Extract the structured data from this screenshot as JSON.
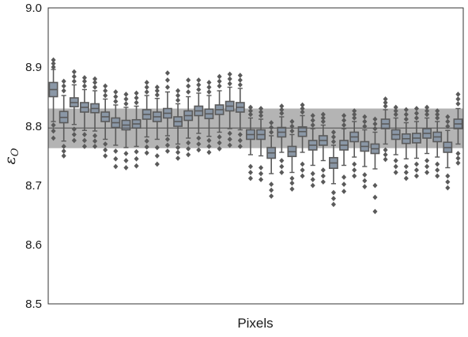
{
  "chart_data": {
    "type": "boxplot",
    "xlabel": "Pixels",
    "ylabel": "ε",
    "ylabel_subscript": "O",
    "ylim": [
      8.5,
      9.0
    ],
    "yticks": [
      "8.5",
      "8.6",
      "8.7",
      "8.8",
      "8.9",
      "9.0"
    ],
    "ytick_values": [
      8.5,
      8.6,
      8.7,
      8.8,
      8.9,
      9.0
    ],
    "grid": false,
    "band": {
      "center": 8.797,
      "low": 8.763,
      "high": 8.83
    },
    "colors": {
      "box_fill": "#8a97a6",
      "box_edge": "#5a5a5a",
      "band": "#b0b0b0",
      "line": "#5a5a5a"
    },
    "boxes": [
      {
        "q1": 8.85,
        "median": 8.862,
        "q3": 8.874,
        "whislo": 8.808,
        "whishi": 8.896,
        "fliers_low": [
          8.78,
          8.792,
          8.802
        ],
        "fliers_high": [
          8.9,
          8.906,
          8.912
        ]
      },
      {
        "q1": 8.806,
        "median": 8.815,
        "q3": 8.825,
        "whislo": 8.775,
        "whishi": 8.852,
        "fliers_low": [
          8.75,
          8.758,
          8.766
        ],
        "fliers_high": [
          8.86,
          8.868,
          8.876
        ]
      },
      {
        "q1": 8.833,
        "median": 8.84,
        "q3": 8.848,
        "whislo": 8.803,
        "whishi": 8.87,
        "fliers_low": [
          8.776,
          8.786,
          8.795
        ],
        "fliers_high": [
          8.876,
          8.884,
          8.892
        ]
      },
      {
        "q1": 8.824,
        "median": 8.832,
        "q3": 8.84,
        "whislo": 8.793,
        "whishi": 8.862,
        "fliers_low": [
          8.766,
          8.776,
          8.786
        ],
        "fliers_high": [
          8.868,
          8.876,
          8.882
        ]
      },
      {
        "q1": 8.823,
        "median": 8.83,
        "q3": 8.838,
        "whislo": 8.792,
        "whishi": 8.86,
        "fliers_low": [
          8.766,
          8.775,
          8.784
        ],
        "fliers_high": [
          8.866,
          8.874,
          8.88
        ]
      },
      {
        "q1": 8.808,
        "median": 8.816,
        "q3": 8.824,
        "whislo": 8.778,
        "whishi": 8.846,
        "fliers_low": [
          8.75,
          8.76,
          8.77
        ],
        "fliers_high": [
          8.852,
          8.86,
          8.868
        ]
      },
      {
        "q1": 8.798,
        "median": 8.806,
        "q3": 8.814,
        "whislo": 8.768,
        "whishi": 8.836,
        "fliers_low": [
          8.732,
          8.745,
          8.758
        ],
        "fliers_high": [
          8.842,
          8.85,
          8.858
        ]
      },
      {
        "q1": 8.794,
        "median": 8.802,
        "q3": 8.81,
        "whislo": 8.764,
        "whishi": 8.832,
        "fliers_low": [
          8.73,
          8.742,
          8.754
        ],
        "fliers_high": [
          8.838,
          8.846,
          8.854
        ]
      },
      {
        "q1": 8.797,
        "median": 8.804,
        "q3": 8.811,
        "whislo": 8.766,
        "whishi": 8.834,
        "fliers_low": [
          8.733,
          8.745,
          8.757
        ],
        "fliers_high": [
          8.84,
          8.848,
          8.856
        ]
      },
      {
        "q1": 8.812,
        "median": 8.82,
        "q3": 8.828,
        "whislo": 8.782,
        "whishi": 8.852,
        "fliers_low": [
          8.755,
          8.765,
          8.775
        ],
        "fliers_high": [
          8.858,
          8.866,
          8.874
        ]
      },
      {
        "q1": 8.808,
        "median": 8.816,
        "q3": 8.824,
        "whislo": 8.778,
        "whishi": 8.847,
        "fliers_low": [
          8.736,
          8.75,
          8.764
        ],
        "fliers_high": [
          8.853,
          8.86,
          8.866
        ]
      },
      {
        "q1": 8.814,
        "median": 8.822,
        "q3": 8.83,
        "whislo": 8.784,
        "whishi": 8.858,
        "fliers_low": [
          8.758,
          8.768,
          8.778
        ],
        "fliers_high": [
          8.866,
          8.878,
          8.89
        ]
      },
      {
        "q1": 8.8,
        "median": 8.808,
        "q3": 8.816,
        "whislo": 8.77,
        "whishi": 8.838,
        "fliers_low": [
          8.746,
          8.756,
          8.764
        ],
        "fliers_high": [
          8.844,
          8.852,
          8.86
        ]
      },
      {
        "q1": 8.81,
        "median": 8.818,
        "q3": 8.826,
        "whislo": 8.78,
        "whishi": 8.85,
        "fliers_low": [
          8.752,
          8.762,
          8.772
        ],
        "fliers_high": [
          8.858,
          8.868,
          8.878
        ]
      },
      {
        "q1": 8.818,
        "median": 8.826,
        "q3": 8.834,
        "whislo": 8.788,
        "whishi": 8.856,
        "fliers_low": [
          8.76,
          8.77,
          8.78
        ],
        "fliers_high": [
          8.862,
          8.87,
          8.878
        ]
      },
      {
        "q1": 8.813,
        "median": 8.821,
        "q3": 8.829,
        "whislo": 8.783,
        "whishi": 8.852,
        "fliers_low": [
          8.756,
          8.766,
          8.776
        ],
        "fliers_high": [
          8.858,
          8.866,
          8.874
        ]
      },
      {
        "q1": 8.82,
        "median": 8.828,
        "q3": 8.836,
        "whislo": 8.79,
        "whishi": 8.86,
        "fliers_low": [
          8.762,
          8.772,
          8.782
        ],
        "fliers_high": [
          8.868,
          8.876,
          8.884
        ]
      },
      {
        "q1": 8.826,
        "median": 8.834,
        "q3": 8.842,
        "whislo": 8.796,
        "whishi": 8.866,
        "fliers_low": [
          8.768,
          8.778,
          8.788
        ],
        "fliers_high": [
          8.872,
          8.88,
          8.888
        ]
      },
      {
        "q1": 8.824,
        "median": 8.832,
        "q3": 8.84,
        "whislo": 8.794,
        "whishi": 8.864,
        "fliers_low": [
          8.766,
          8.776,
          8.786
        ],
        "fliers_high": [
          8.87,
          8.878,
          8.886
        ]
      },
      {
        "q1": 8.778,
        "median": 8.786,
        "q3": 8.794,
        "whislo": 8.752,
        "whishi": 8.814,
        "fliers_low": [
          8.712,
          8.722,
          8.732
        ],
        "fliers_high": [
          8.82,
          8.826,
          8.832
        ]
      },
      {
        "q1": 8.778,
        "median": 8.786,
        "q3": 8.794,
        "whislo": 8.75,
        "whishi": 8.812,
        "fliers_low": [
          8.71,
          8.72,
          8.73
        ],
        "fliers_high": [
          8.818,
          8.824,
          8.83
        ]
      },
      {
        "q1": 8.746,
        "median": 8.755,
        "q3": 8.764,
        "whislo": 8.72,
        "whishi": 8.784,
        "fliers_low": [
          8.682,
          8.692,
          8.702
        ],
        "fliers_high": [
          8.79,
          8.798,
          8.806
        ]
      },
      {
        "q1": 8.782,
        "median": 8.79,
        "q3": 8.798,
        "whislo": 8.756,
        "whishi": 8.816,
        "fliers_low": [
          8.722,
          8.732,
          8.742
        ],
        "fliers_high": [
          8.822,
          8.828,
          8.834
        ]
      },
      {
        "q1": 8.749,
        "median": 8.757,
        "q3": 8.766,
        "whislo": 8.722,
        "whishi": 8.786,
        "fliers_low": [
          8.694,
          8.704,
          8.712
        ],
        "fliers_high": [
          8.792,
          8.8,
          8.808
        ]
      },
      {
        "q1": 8.783,
        "median": 8.791,
        "q3": 8.799,
        "whislo": 8.756,
        "whishi": 8.818,
        "fliers_low": [
          8.716,
          8.726,
          8.736
        ],
        "fliers_high": [
          8.824,
          8.83,
          8.836
        ]
      },
      {
        "q1": 8.76,
        "median": 8.768,
        "q3": 8.776,
        "whislo": 8.734,
        "whishi": 8.796,
        "fliers_low": [
          8.7,
          8.71,
          8.72
        ],
        "fliers_high": [
          8.802,
          8.81,
          8.818
        ]
      },
      {
        "q1": 8.768,
        "median": 8.776,
        "q3": 8.784,
        "whislo": 8.742,
        "whishi": 8.802,
        "fliers_low": [
          8.706,
          8.716,
          8.726
        ],
        "fliers_high": [
          8.808,
          8.814,
          8.82
        ]
      },
      {
        "q1": 8.729,
        "median": 8.738,
        "q3": 8.747,
        "whislo": 8.703,
        "whishi": 8.768,
        "fliers_low": [
          8.668,
          8.678,
          8.688
        ],
        "fliers_high": [
          8.774,
          8.782,
          8.79
        ]
      },
      {
        "q1": 8.76,
        "median": 8.768,
        "q3": 8.776,
        "whislo": 8.734,
        "whishi": 8.796,
        "fliers_low": [
          8.69,
          8.702,
          8.714
        ],
        "fliers_high": [
          8.802,
          8.81,
          8.818
        ]
      },
      {
        "q1": 8.774,
        "median": 8.782,
        "q3": 8.79,
        "whislo": 8.748,
        "whishi": 8.808,
        "fliers_low": [
          8.716,
          8.726,
          8.736
        ],
        "fliers_high": [
          8.814,
          8.82,
          8.826
        ]
      },
      {
        "q1": 8.758,
        "median": 8.766,
        "q3": 8.774,
        "whislo": 8.732,
        "whishi": 8.794,
        "fliers_low": [
          8.698,
          8.708,
          8.718
        ],
        "fliers_high": [
          8.8,
          8.808,
          8.816
        ]
      },
      {
        "q1": 8.754,
        "median": 8.762,
        "q3": 8.77,
        "whislo": 8.728,
        "whishi": 8.79,
        "fliers_low": [
          8.656,
          8.68,
          8.7
        ],
        "fliers_high": [
          8.796,
          8.804,
          8.812
        ]
      },
      {
        "q1": 8.796,
        "median": 8.804,
        "q3": 8.812,
        "whislo": 8.77,
        "whishi": 8.828,
        "fliers_low": [
          8.744,
          8.752,
          8.76
        ],
        "fliers_high": [
          8.834,
          8.84,
          8.846
        ]
      },
      {
        "q1": 8.778,
        "median": 8.786,
        "q3": 8.794,
        "whislo": 8.752,
        "whishi": 8.814,
        "fliers_low": [
          8.722,
          8.732,
          8.742
        ],
        "fliers_high": [
          8.82,
          8.826,
          8.832
        ]
      },
      {
        "q1": 8.771,
        "median": 8.779,
        "q3": 8.787,
        "whislo": 8.745,
        "whishi": 8.806,
        "fliers_low": [
          8.712,
          8.722,
          8.732
        ],
        "fliers_high": [
          8.812,
          8.82,
          8.828
        ]
      },
      {
        "q1": 8.772,
        "median": 8.78,
        "q3": 8.788,
        "whislo": 8.746,
        "whishi": 8.808,
        "fliers_low": [
          8.716,
          8.726,
          8.736
        ],
        "fliers_high": [
          8.814,
          8.822,
          8.83
        ]
      },
      {
        "q1": 8.78,
        "median": 8.788,
        "q3": 8.796,
        "whislo": 8.754,
        "whishi": 8.814,
        "fliers_low": [
          8.722,
          8.732,
          8.742
        ],
        "fliers_high": [
          8.82,
          8.826,
          8.832
        ]
      },
      {
        "q1": 8.774,
        "median": 8.782,
        "q3": 8.79,
        "whislo": 8.748,
        "whishi": 8.808,
        "fliers_low": [
          8.716,
          8.726,
          8.736
        ],
        "fliers_high": [
          8.814,
          8.82,
          8.826
        ]
      },
      {
        "q1": 8.756,
        "median": 8.764,
        "q3": 8.773,
        "whislo": 8.73,
        "whishi": 8.793,
        "fliers_low": [
          8.696,
          8.706,
          8.716
        ],
        "fliers_high": [
          8.8,
          8.808,
          8.816
        ]
      },
      {
        "q1": 8.796,
        "median": 8.804,
        "q3": 8.812,
        "whislo": 8.77,
        "whishi": 8.83,
        "fliers_low": [
          8.738,
          8.746,
          8.754
        ],
        "fliers_high": [
          8.838,
          8.846,
          8.854
        ]
      }
    ]
  }
}
